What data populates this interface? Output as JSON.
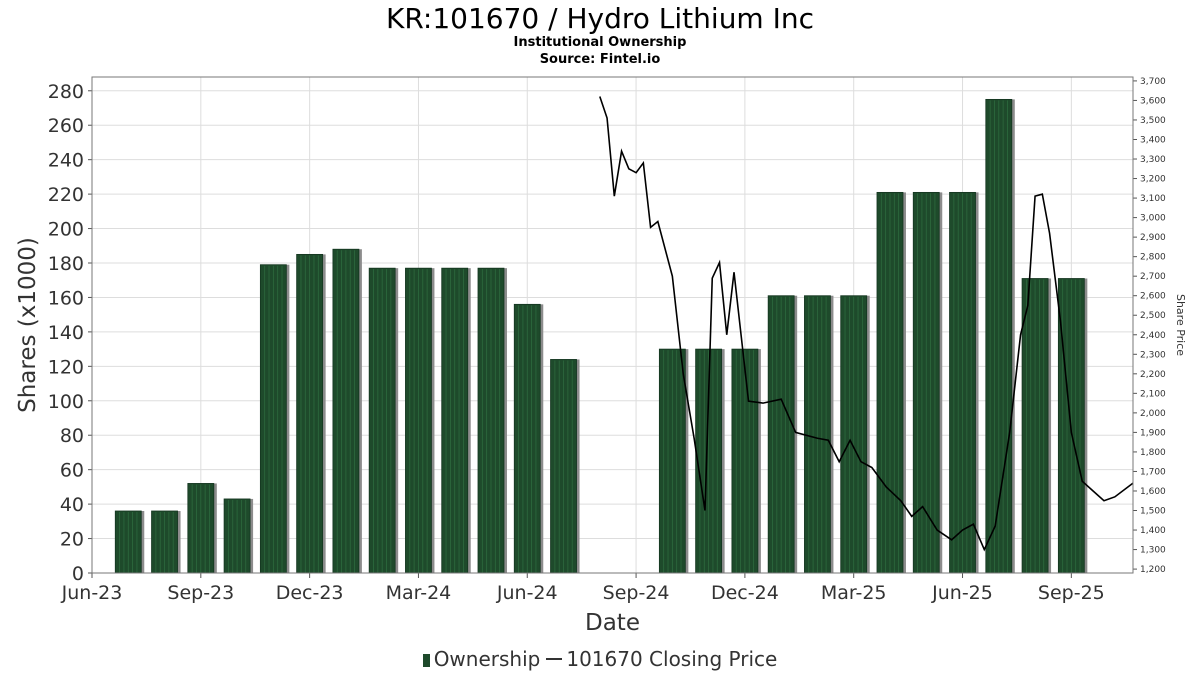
{
  "header": {
    "title": "KR:101670 / Hydro Lithium Inc",
    "subtitle": "Institutional Ownership",
    "source": "Source: Fintel.io"
  },
  "legend": {
    "ownership_label": "Ownership",
    "price_label": "101670 Closing Price"
  },
  "colors": {
    "bar_fill": "#1e4a2b",
    "bar_shadow": "#8c8c8c",
    "price_line": "#000000",
    "grid": "#dddddd"
  },
  "chart_data": {
    "type": "bar",
    "title": "KR:101670 / Hydro Lithium Inc",
    "xlabel": "Date",
    "ylabel": "Shares (x1000)",
    "y2label": "Share Price",
    "ylim": [
      0,
      288
    ],
    "y2lim": [
      1180,
      3720
    ],
    "yticks": [
      0,
      20,
      40,
      60,
      80,
      100,
      120,
      140,
      160,
      180,
      200,
      220,
      240,
      260,
      280
    ],
    "y2ticks": [
      1200,
      1300,
      1400,
      1500,
      1600,
      1700,
      1800,
      1900,
      2000,
      2100,
      2200,
      2300,
      2400,
      2500,
      2600,
      2700,
      2800,
      2900,
      3000,
      3100,
      3200,
      3300,
      3400,
      3500,
      3600,
      3700
    ],
    "y2tick_labels": [
      "1,200",
      "1,300",
      "1,400",
      "1,500",
      "1,600",
      "1,700",
      "1,800",
      "1,900",
      "2,000",
      "2,100",
      "2,200",
      "2,300",
      "2,400",
      "2,500",
      "2,600",
      "2,700",
      "2,800",
      "2,900",
      "3,000",
      "3,100",
      "3,200",
      "3,300",
      "3,400",
      "3,500",
      "3,600",
      "3,700"
    ],
    "xticks": [
      "Jun-23",
      "Sep-23",
      "Dec-23",
      "Mar-24",
      "Jun-24",
      "Sep-24",
      "Dec-24",
      "Mar-25",
      "Jun-25",
      "Sep-25"
    ],
    "x_range_months": [
      0,
      28.7
    ],
    "grid": true,
    "legend_position": "bottom",
    "series": [
      {
        "name": "Ownership",
        "type": "bar",
        "x_months": [
          1,
          2,
          3,
          4,
          5,
          6,
          7,
          8,
          9,
          10,
          11,
          12,
          13,
          14,
          15,
          16,
          17,
          18,
          19,
          20,
          21,
          22,
          23,
          24,
          25,
          26,
          27,
          28
        ],
        "values": [
          36,
          36,
          52,
          43,
          179,
          185,
          188,
          177,
          177,
          177,
          177,
          156,
          124,
          0,
          0,
          130,
          130,
          130,
          161,
          161,
          161,
          221,
          221,
          221,
          275,
          171,
          171,
          0
        ]
      },
      {
        "name": "101670 Closing Price",
        "type": "line",
        "x_months": [
          14.0,
          14.2,
          14.4,
          14.6,
          14.8,
          15.0,
          15.2,
          15.4,
          15.6,
          16.0,
          16.3,
          16.6,
          16.9,
          17.1,
          17.3,
          17.5,
          17.7,
          17.9,
          18.1,
          18.5,
          19.0,
          19.4,
          20.0,
          20.3,
          20.6,
          20.9,
          21.2,
          21.5,
          21.9,
          22.3,
          22.6,
          22.9,
          23.3,
          23.7,
          24.0,
          24.3,
          24.6,
          24.9,
          25.3,
          25.6,
          25.8,
          26.0,
          26.2,
          26.4,
          26.7,
          27.0,
          27.3,
          27.6,
          27.9,
          28.2,
          28.7
        ],
        "values": [
          3620,
          3510,
          3110,
          3340,
          3250,
          3230,
          3280,
          2950,
          2980,
          2700,
          2200,
          1870,
          1500,
          2690,
          2770,
          2400,
          2720,
          2390,
          2060,
          2050,
          2070,
          1900,
          1870,
          1860,
          1750,
          1860,
          1750,
          1720,
          1620,
          1550,
          1470,
          1520,
          1400,
          1350,
          1400,
          1430,
          1300,
          1420,
          1900,
          2400,
          2550,
          3110,
          3120,
          2920,
          2470,
          1900,
          1650,
          1600,
          1550,
          1570,
          1640
        ]
      }
    ]
  }
}
